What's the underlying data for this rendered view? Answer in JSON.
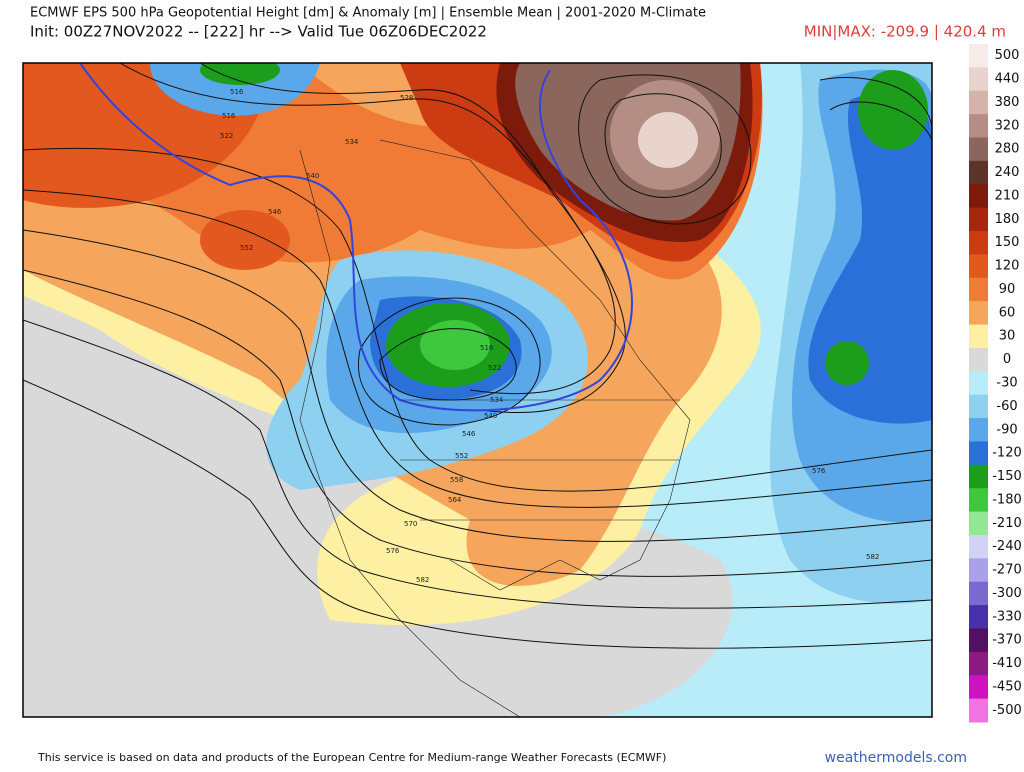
{
  "header": {
    "title": "ECMWF EPS 500 hPa Geopotential Height [dm] & Anomaly [m] | Ensemble Mean | 2001-2020 M-Climate",
    "init": "Init: 00Z27NOV2022 -- [222] hr --> Valid Tue 06Z06DEC2022",
    "minmax": "MIN|MAX: -209.9 | 420.4 m"
  },
  "colorbar": {
    "items": [
      {
        "label": "500",
        "color": "#f6ebe8"
      },
      {
        "label": "440",
        "color": "#e9d4cd"
      },
      {
        "label": "380",
        "color": "#d4b3a9"
      },
      {
        "label": "320",
        "color": "#b48e84"
      },
      {
        "label": "280",
        "color": "#8a665d"
      },
      {
        "label": "240",
        "color": "#5c3328"
      },
      {
        "label": "210",
        "color": "#7c1a0c"
      },
      {
        "label": "180",
        "color": "#a8260e"
      },
      {
        "label": "150",
        "color": "#cc3b12"
      },
      {
        "label": "120",
        "color": "#e3581f"
      },
      {
        "label": "90",
        "color": "#ef7b36"
      },
      {
        "label": "60",
        "color": "#f6a65c"
      },
      {
        "label": "30",
        "color": "#fdf0a2"
      },
      {
        "label": "0",
        "color": "#d9d9d9"
      },
      {
        "label": "-30",
        "color": "#b8ecf8"
      },
      {
        "label": "-60",
        "color": "#8ed0f0"
      },
      {
        "label": "-90",
        "color": "#5aa8ea"
      },
      {
        "label": "-120",
        "color": "#2a70d8"
      },
      {
        "label": "-150",
        "color": "#1c9e1c"
      },
      {
        "label": "-180",
        "color": "#3ec83e"
      },
      {
        "label": "-210",
        "color": "#92e892"
      },
      {
        "label": "-240",
        "color": "#d2d2f2"
      },
      {
        "label": "-270",
        "color": "#aaa2e8"
      },
      {
        "label": "-300",
        "color": "#7a6ad0"
      },
      {
        "label": "-330",
        "color": "#4830a8"
      },
      {
        "label": "-370",
        "color": "#521062"
      },
      {
        "label": "-410",
        "color": "#8c1a82"
      },
      {
        "label": "-450",
        "color": "#d012c0"
      },
      {
        "label": "-500",
        "color": "#f272e2"
      }
    ]
  },
  "map": {
    "contour_labels": [
      "516",
      "522",
      "528",
      "534",
      "540",
      "546",
      "552",
      "558",
      "564",
      "570",
      "576",
      "582"
    ]
  },
  "footer": {
    "credit": "This service is based on data and products of the European Centre for Medium-range Weather Forecasts (ECMWF)",
    "site": "weathermodels.com"
  }
}
